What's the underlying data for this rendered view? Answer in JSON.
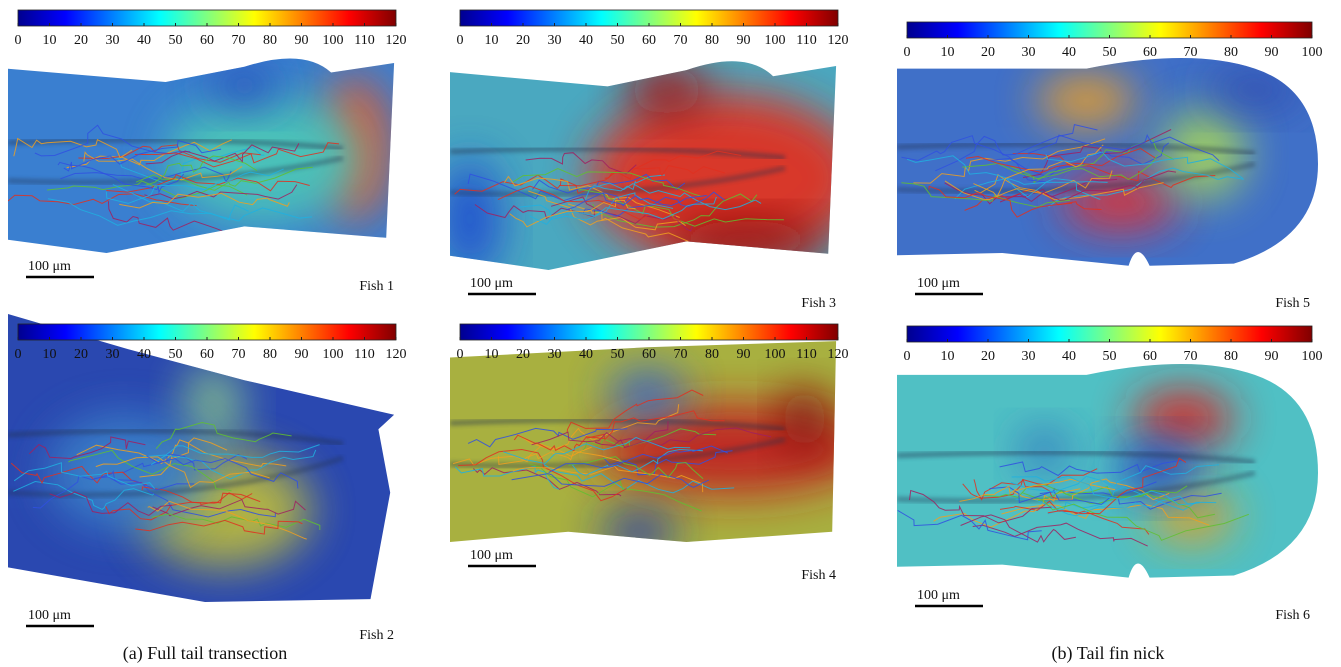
{
  "panels": [
    {
      "colorbar_ticks": [
        0,
        10,
        20,
        30,
        40,
        50,
        60,
        70,
        80,
        90,
        100,
        110,
        120
      ],
      "scale_bar": "100 μm",
      "label": "Fish 1"
    },
    {
      "colorbar_ticks": [
        0,
        10,
        20,
        30,
        40,
        50,
        60,
        70,
        80,
        90,
        100,
        110,
        120
      ],
      "scale_bar": "100 μm",
      "label": "Fish 2"
    },
    {
      "colorbar_ticks": [
        0,
        10,
        20,
        30,
        40,
        50,
        60,
        70,
        80,
        90,
        100,
        110,
        120
      ],
      "scale_bar": "100 μm",
      "label": "Fish 3"
    },
    {
      "colorbar_ticks": [
        0,
        10,
        20,
        30,
        40,
        50,
        60,
        70,
        80,
        90,
        100,
        110,
        120
      ],
      "scale_bar": "100 μm",
      "label": "Fish 4"
    },
    {
      "colorbar_ticks": [
        0,
        10,
        20,
        30,
        40,
        50,
        60,
        70,
        80,
        90,
        100
      ],
      "scale_bar": "100 μm",
      "label": "Fish 5"
    },
    {
      "colorbar_ticks": [
        0,
        10,
        20,
        30,
        40,
        50,
        60,
        70,
        80,
        90,
        100
      ],
      "scale_bar": "100 μm",
      "label": "Fish 6"
    }
  ],
  "captions": [
    "(a) Full tail transection",
    "(b) Tail fin nick"
  ]
}
